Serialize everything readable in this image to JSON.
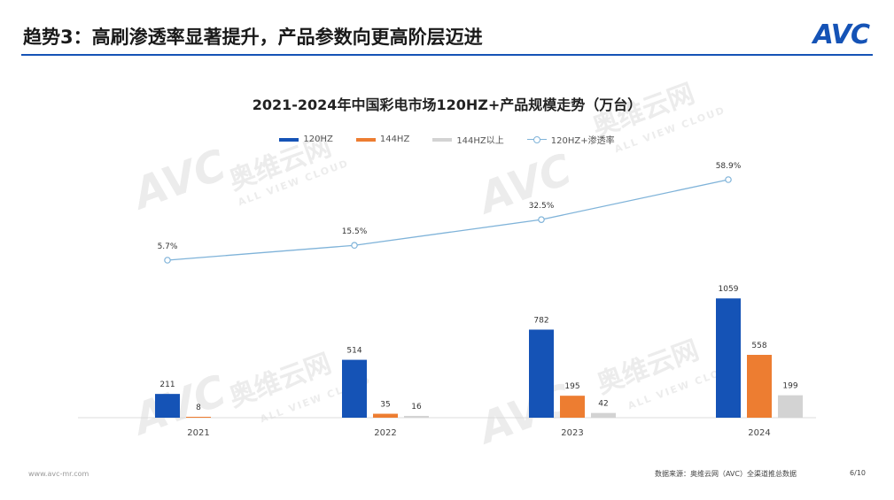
{
  "slide": {
    "title": "趋势3：高刷渗透率显著提升，产品参数向更高阶层迈进",
    "logo": "AVC",
    "footer_left": "www.avc-mr.com",
    "source": "数据来源：奥维云网（AVC）全渠道推总数据",
    "page": "6/10",
    "accent_color": "#1553b6"
  },
  "watermark": {
    "logo_text": "AVC",
    "cn_text": "奥维云网",
    "en_text": "ALL VIEW CLOUD"
  },
  "chart_data": {
    "type": "bar",
    "title": "2021-2024年中国彩电市场120HZ+产品规模走势（万台）",
    "categories": [
      "2021",
      "2022",
      "2023",
      "2024"
    ],
    "series": [
      {
        "name": "120HZ",
        "color": "#1553b6",
        "values": [
          211,
          514,
          782,
          1059
        ],
        "labels": [
          "211",
          "514",
          "782",
          "1059"
        ]
      },
      {
        "name": "144HZ",
        "color": "#ed7d31",
        "values": [
          8,
          35,
          195,
          558
        ],
        "labels": [
          "8",
          "35",
          "195",
          "558"
        ]
      },
      {
        "name": "144HZ以上",
        "color": "#d3d3d3",
        "values": [
          0,
          16,
          42,
          199
        ],
        "labels": [
          "",
          "16",
          "42",
          "199"
        ]
      }
    ],
    "line_series": {
      "name": "120HZ+渗透率",
      "color": "#7fb3d9",
      "values": [
        5.7,
        15.5,
        32.5,
        58.9
      ],
      "labels": [
        "5.7%",
        "15.5%",
        "32.5%",
        "58.9%"
      ]
    },
    "ylim": [
      0,
      1100
    ],
    "line_ylim": [
      0,
      100
    ],
    "grid": false,
    "legend_position": "top"
  }
}
